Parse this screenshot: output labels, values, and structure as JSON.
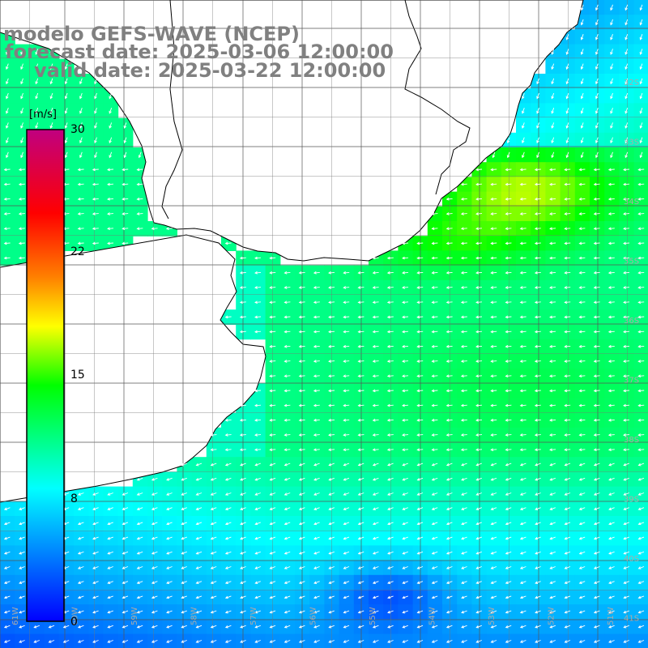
{
  "header": {
    "title": "modelo GEFS-WAVE (NCEP)",
    "forecast_label": "forecast date: 2025-03-06 12:00:00",
    "valid_label": "valid date: 2025-03-22 12:00:00"
  },
  "colorbar": {
    "unit": "[m/s]",
    "min": 0,
    "max": 30,
    "ticks": [
      "30",
      "22",
      "15",
      "8",
      "0"
    ],
    "tick_values": [
      30,
      22,
      15,
      8,
      0
    ]
  },
  "map": {
    "lat_labels": [
      "32S",
      "33S",
      "34S",
      "35S",
      "36S",
      "37S",
      "38S",
      "39S",
      "40S",
      "41S"
    ],
    "lon_labels": [
      "61W",
      "60W",
      "59W",
      "58W",
      "57W",
      "56W",
      "55W",
      "54W",
      "53W",
      "52W",
      "51W"
    ],
    "field": "wind speed",
    "land_color": "#ffffff",
    "coast_color": "#000000"
  }
}
